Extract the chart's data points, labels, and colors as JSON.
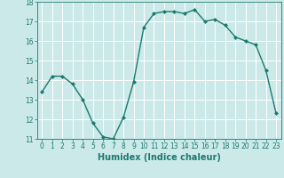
{
  "x": [
    0,
    1,
    2,
    3,
    4,
    5,
    6,
    7,
    8,
    9,
    10,
    11,
    12,
    13,
    14,
    15,
    16,
    17,
    18,
    19,
    20,
    21,
    22,
    23
  ],
  "y": [
    13.4,
    14.2,
    14.2,
    13.8,
    13.0,
    11.8,
    11.1,
    11.0,
    12.1,
    13.9,
    16.7,
    17.4,
    17.5,
    17.5,
    17.4,
    17.6,
    17.0,
    17.1,
    16.8,
    16.2,
    16.0,
    15.8,
    14.5,
    12.3
  ],
  "line_color": "#1a7a6e",
  "marker": "D",
  "marker_size": 2.0,
  "bg_color": "#cce9ea",
  "grid_color": "#ffffff",
  "xlabel": "Humidex (Indice chaleur)",
  "ylim": [
    11,
    18
  ],
  "xlim_min": -0.5,
  "xlim_max": 23.5,
  "yticks": [
    11,
    12,
    13,
    14,
    15,
    16,
    17,
    18
  ],
  "xticks": [
    0,
    1,
    2,
    3,
    4,
    5,
    6,
    7,
    8,
    9,
    10,
    11,
    12,
    13,
    14,
    15,
    16,
    17,
    18,
    19,
    20,
    21,
    22,
    23
  ],
  "tick_label_fontsize": 5.5,
  "xlabel_fontsize": 7.0,
  "tick_color": "#1a7a6e",
  "axis_color": "#1a7a6e",
  "linewidth": 1.0
}
